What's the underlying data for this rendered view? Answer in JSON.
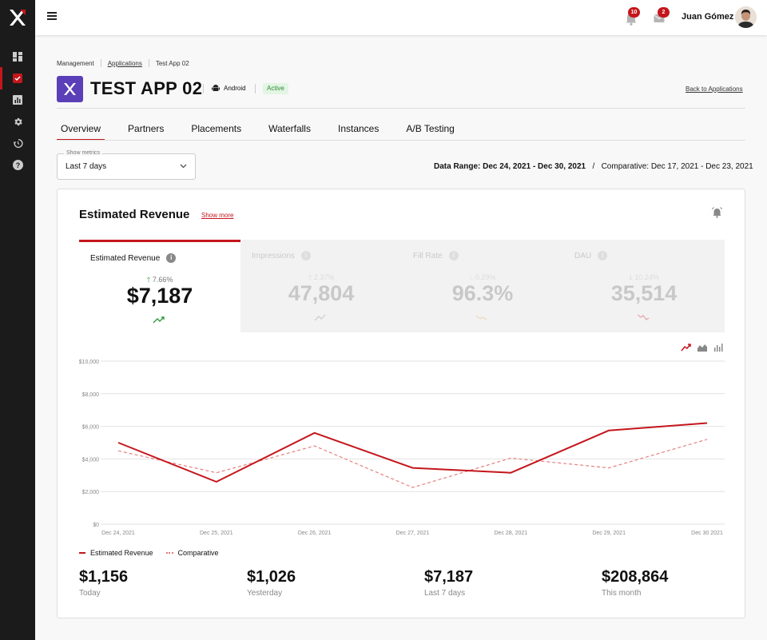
{
  "topbar": {
    "notifications_count": "10",
    "messages_count": "2",
    "user_name": "Juan Gómez"
  },
  "breadcrumb": [
    "Management",
    "Applications",
    "Test App 02"
  ],
  "app": {
    "title": "TEST APP 02",
    "platform": "Android",
    "status": "Active",
    "back_link": "Back to Applications"
  },
  "tabs": [
    "Overview",
    "Partners",
    "Placements",
    "Waterfalls",
    "Instances",
    "A/B Testing"
  ],
  "filters": {
    "show_metrics_label": "Show metrics",
    "show_metrics_value": "Last 7 days",
    "data_range_label": "Data Range: Dec 24, 2021 - Dec 30, 2021",
    "comparative_label": "Comparative: Dec 17, 2021 - Dec 23, 2021"
  },
  "card": {
    "title": "Estimated Revenue",
    "show_more": "Show more"
  },
  "metrics": [
    {
      "label": "Estimated Revenue",
      "change": "7.66%",
      "direction": "up",
      "value": "$7,187",
      "color": "#2e9d3e"
    },
    {
      "label": "Impressions",
      "change": "2.37%",
      "direction": "up",
      "value": "47,804",
      "color": "#2e9d3e"
    },
    {
      "label": "Fill Rate",
      "change": "0.29%",
      "direction": "down",
      "value": "96.3%",
      "color": "#e8a15a"
    },
    {
      "label": "DAU",
      "change": "10.24%",
      "direction": "down",
      "value": "35,514",
      "color": "#c4161c"
    }
  ],
  "chart_data": {
    "type": "line",
    "x": [
      "Dec 24, 2021",
      "Dec 25, 2021",
      "Dec 26, 2021",
      "Dec 27, 2021",
      "Dec 28, 2021",
      "Dec 29, 2021",
      "Dec 30 2021"
    ],
    "ytick_labels": [
      "$0",
      "$2,000",
      "$4,000",
      "$6,000",
      "$8,000",
      "$10,000"
    ],
    "ylim": [
      0,
      10000
    ],
    "grid": true,
    "legend_position": "bottom-left",
    "series": [
      {
        "name": "Estimated Revenue",
        "values": [
          5000,
          2600,
          5600,
          3450,
          3150,
          5750,
          6200
        ],
        "color": "#c4161c",
        "style": "solid"
      },
      {
        "name": "Comparative",
        "values": [
          4500,
          3150,
          4800,
          2250,
          4050,
          3450,
          5200
        ],
        "color": "#e58080",
        "style": "dashed"
      }
    ]
  },
  "summary": [
    {
      "value": "$1,156",
      "label": "Today"
    },
    {
      "value": "$1,026",
      "label": "Yesterday"
    },
    {
      "value": "$7,187",
      "label": "Last 7 days"
    },
    {
      "value": "$208,864",
      "label": "This month"
    }
  ]
}
